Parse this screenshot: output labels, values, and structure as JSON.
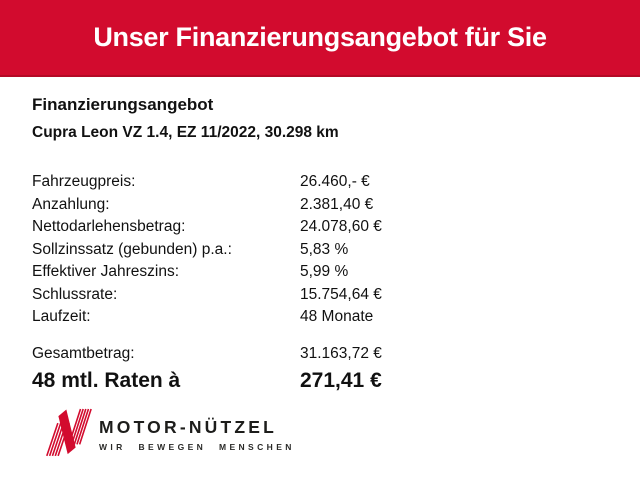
{
  "theme": {
    "accent_red": "#d20b2e",
    "accent_red_dark": "#b40926",
    "text_color": "#111111",
    "logo_text_color": "#1d1d1b",
    "background": "#ffffff"
  },
  "header": {
    "title": "Unser Finanzierungsangebot für Sie"
  },
  "offer": {
    "heading": "Finanzierungsangebot",
    "vehicle": "Cupra Leon VZ 1.4, EZ 11/2022, 30.298 km",
    "rows": [
      {
        "label": "Fahrzeugpreis:",
        "value": "26.460,- €"
      },
      {
        "label": "Anzahlung:",
        "value": "2.381,40 €"
      },
      {
        "label": "Nettodarlehensbetrag:",
        "value": "24.078,60 €"
      },
      {
        "label": "Sollzinssatz (gebunden) p.a.:",
        "value": "5,83 %"
      },
      {
        "label": "Effektiver Jahreszins:",
        "value": "5,99 %"
      },
      {
        "label": "Schlussrate:",
        "value": "15.754,64 €"
      },
      {
        "label": "Laufzeit:",
        "value": "48 Monate"
      }
    ],
    "total": {
      "label": "Gesamtbetrag:",
      "value": "31.163,72 €"
    },
    "rate": {
      "label": "48 mtl. Raten à",
      "value": "271,41 €"
    }
  },
  "logo": {
    "name": "MOTOR-NÜTZEL",
    "tagline": "WIR BEWEGEN MENSCHEN",
    "mark": "striped-n-logo"
  }
}
